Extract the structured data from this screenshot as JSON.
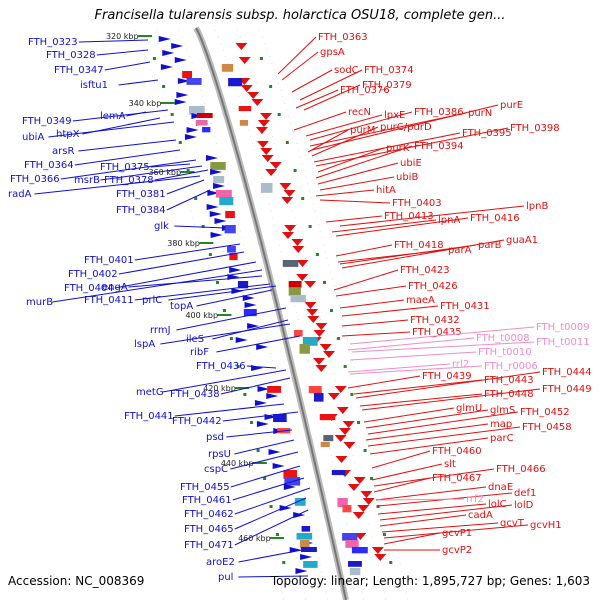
{
  "title": "Francisella tularensis subsp. holarctica OSU18, complete gen...",
  "footer": {
    "accession": "Accession: NC_008369",
    "summary": "Topology: linear; Length: 1,895,727 bp; Genes: 1,603"
  },
  "colors": {
    "forward_strand": "#1010cc",
    "reverse_strand": "#e01010",
    "rna_genes": "#f08cc8",
    "backbone": "#999999",
    "tick": "#228822"
  },
  "ticks": [
    "320 kbp",
    "340 kbp",
    "360 kbp",
    "380 kbp",
    "400 kbp",
    "420 kbp",
    "440 kbp",
    "460 kbp"
  ],
  "left_labels": [
    "FTH_0323",
    "FTH_0328",
    "FTH_0347",
    "isftu1",
    "lemA",
    "FTH_0349",
    "htpX",
    "ubiA",
    "arsR",
    "FTH_0364",
    "FTH_0375",
    "FTH_0366",
    "msrB",
    "FTH_0378",
    "radA",
    "FTH_0381",
    "FTH_0384",
    "glk",
    "FTH_0401",
    "FTH_0402",
    "FTH_0404",
    "engA",
    "murB",
    "FTH_0411",
    "prlC",
    "topA",
    "rrmJ",
    "ileS",
    "lspA",
    "ribF",
    "FTH_0436",
    "metG",
    "FTH_0438",
    "FTH_0441",
    "FTH_0442",
    "psd",
    "rpsU",
    "cspC",
    "FTH_0455",
    "FTH_0461",
    "FTH_0462",
    "FTH_0465",
    "FTH_0471",
    "aroE2",
    "pul"
  ],
  "right_labels": [
    "FTH_0363",
    "gpsA",
    "sodC",
    "FTH_0374",
    "FTH_0376",
    "FTH_0379",
    "recN",
    "lpxE",
    "FTH_0386",
    "purN",
    "purE",
    "purM",
    "purC/purD",
    "FTH_0395",
    "FTH_0398",
    "purK",
    "FTH_0394",
    "ubiE",
    "ubiB",
    "hitA",
    "FTH_0403",
    "lpnB",
    "FTH_0413",
    "lpnA",
    "FTH_0416",
    "FTH_0418",
    "parA",
    "parB",
    "guaA1",
    "FTH_0423",
    "FTH_0426",
    "maeA",
    "FTH_0431",
    "FTH_0432",
    "FTH_0435",
    "FTH_0439",
    "FTH_0443",
    "FTH_0444",
    "FTH_0448",
    "FTH_0449",
    "glmU",
    "glmS",
    "FTH_0452",
    "map",
    "FTH_0458",
    "parC",
    "FTH_0460",
    "slt",
    "FTH_0466",
    "FTH_0467",
    "dnaE",
    "def1",
    "lolC",
    "lolD",
    "cadA",
    "gcvT",
    "gcvH1",
    "gcvP1",
    "gcvP2"
  ],
  "rna_labels": [
    "FTH_t0009",
    "FTH_t0008",
    "FTH_t0011",
    "FTH_t0010",
    "rrl2",
    "FTH_r0006",
    "rrf2"
  ]
}
